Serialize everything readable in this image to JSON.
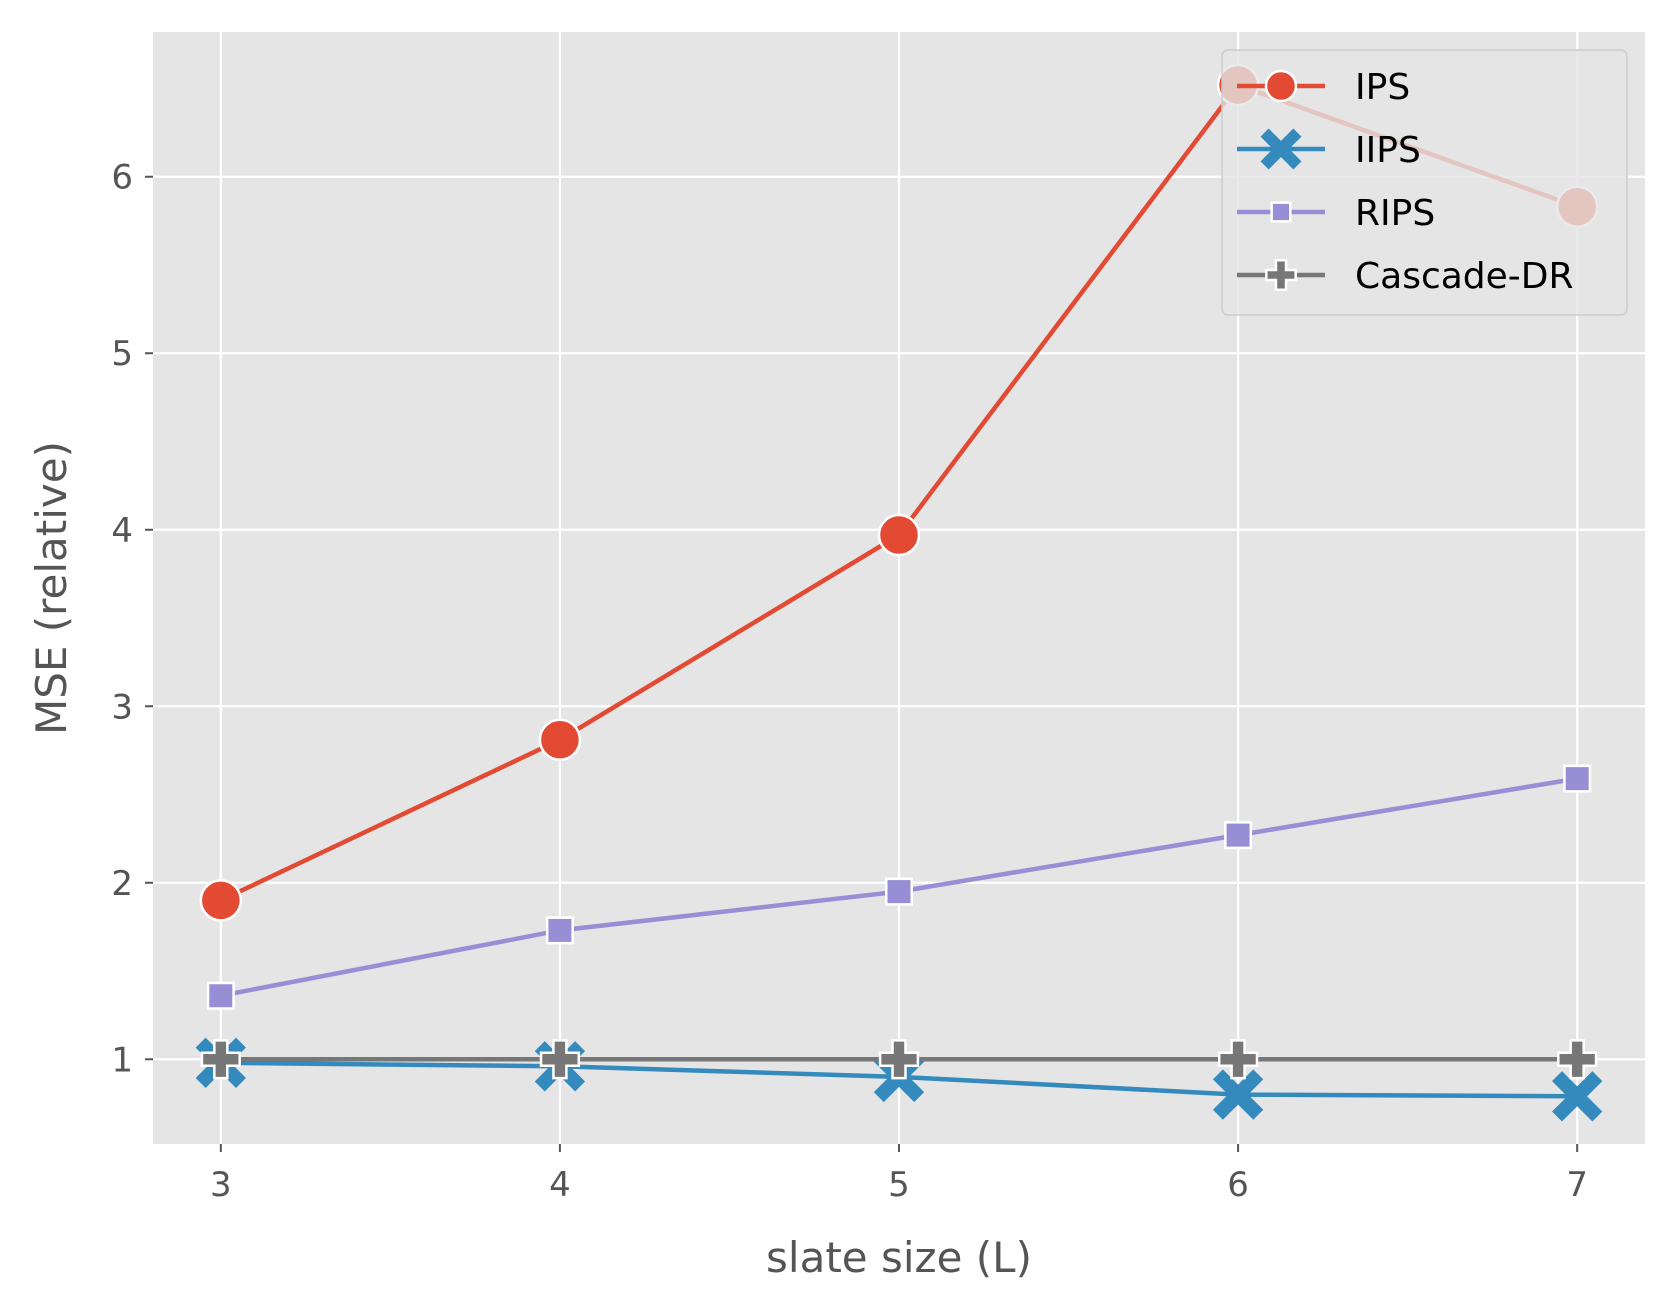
{
  "chart_data": {
    "type": "line",
    "title": "",
    "xlabel": "slate size (L)",
    "ylabel": "MSE (relative)",
    "x": [
      3,
      4,
      5,
      6,
      7
    ],
    "xticks": [
      "3",
      "4",
      "5",
      "6",
      "7"
    ],
    "yticks": [
      "1",
      "2",
      "3",
      "4",
      "5",
      "6"
    ],
    "xlim": [
      2.8,
      7.2
    ],
    "ylim": [
      0.52,
      6.82
    ],
    "grid": true,
    "legend_position": "top-right",
    "series": [
      {
        "name": "IPS",
        "values": [
          1.9,
          2.81,
          3.97,
          6.52,
          5.83
        ],
        "color": "#E24A33",
        "marker": "circle"
      },
      {
        "name": "IIPS",
        "values": [
          0.98,
          0.96,
          0.9,
          0.8,
          0.79
        ],
        "color": "#348ABD",
        "marker": "x"
      },
      {
        "name": "RIPS",
        "values": [
          1.36,
          1.73,
          1.95,
          2.27,
          2.59
        ],
        "color": "#988ED5",
        "marker": "square"
      },
      {
        "name": "Cascade-DR",
        "values": [
          1.0,
          1.0,
          1.0,
          1.0,
          1.0
        ],
        "color": "#777777",
        "marker": "plus"
      }
    ]
  }
}
